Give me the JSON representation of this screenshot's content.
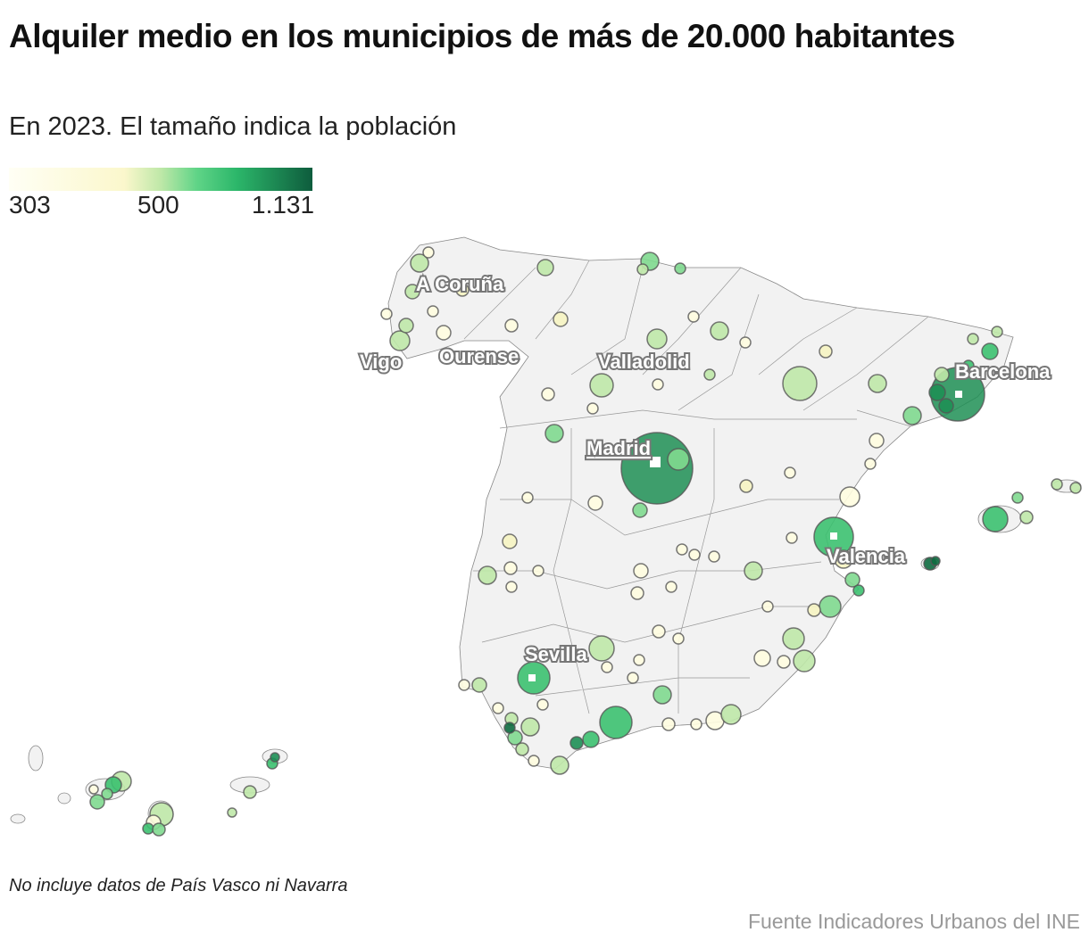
{
  "title": "Alquiler medio en los municipios de más de 20.000 habitantes",
  "subtitle": "En 2023. El tamaño indica la población",
  "legend": {
    "min": "303",
    "mid": "500",
    "max": "1.131",
    "colors": [
      "#fffff5",
      "#fbf7cc",
      "#5fd487",
      "#2cb76a",
      "#0e5c3d"
    ]
  },
  "cities": {
    "coruna": "A Coruña",
    "vigo": "Vigo",
    "ourense": "Ourense",
    "valladolid": "Valladolid",
    "madrid": "Madrid",
    "barcelona": "Barcelona",
    "valencia": "Valencia",
    "sevilla": "Sevilla"
  },
  "note": "No incluye datos de País Vasco ni Navarra",
  "source": "Fuente Indicadores Urbanos del INE",
  "land_color": "#f2f2f2"
}
